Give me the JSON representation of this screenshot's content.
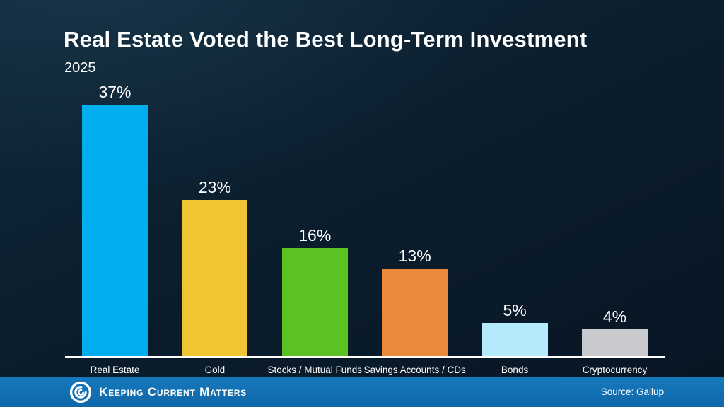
{
  "title": "Real Estate Voted the Best Long-Term Investment",
  "subtitle": "2025",
  "footer": {
    "brand": "Keeping Current Matters",
    "source": "Source: Gallup",
    "band_color": "#1373B5",
    "logo_icon": "kcm-swirl"
  },
  "chart_data": {
    "type": "bar",
    "title": "Real Estate Voted the Best Long-Term Investment",
    "subtitle": "2025",
    "categories": [
      "Real Estate",
      "Gold",
      "Stocks / Mutual Funds",
      "Savings Accounts / CDs",
      "Bonds",
      "Cryptocurrency"
    ],
    "values": [
      37,
      23,
      16,
      13,
      5,
      4
    ],
    "value_labels": [
      "37%",
      "23%",
      "16%",
      "13%",
      "5%",
      "4%"
    ],
    "bar_colors": [
      "#00AEEF",
      "#F0C432",
      "#5CC123",
      "#EC8A3C",
      "#B5EAFB",
      "#C9CACD"
    ],
    "xlabel": "",
    "ylabel": "",
    "ylim": [
      0,
      40
    ],
    "grid": false,
    "legend": false,
    "axis_color": "#FFFFFF",
    "value_label_position": "above-bar",
    "background": "dark-navy-gradient"
  }
}
